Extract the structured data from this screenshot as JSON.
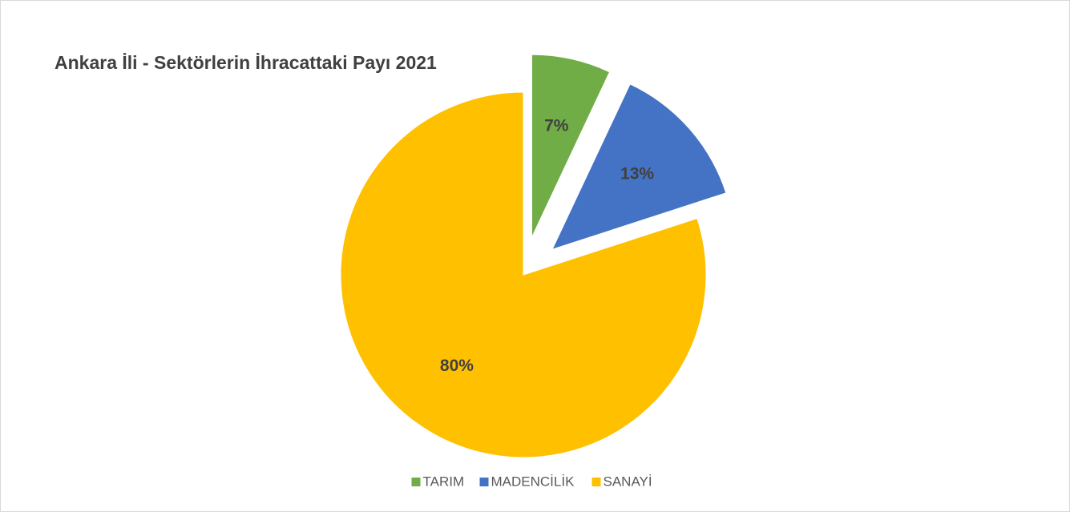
{
  "chart_data": {
    "type": "pie",
    "title": "Ankara İli - Sektörlerin İhracattaki Payı 2021",
    "categories": [
      "TARIM",
      "MADENCİLİK",
      "SANAYİ"
    ],
    "values": [
      7,
      13,
      80
    ],
    "value_labels": [
      "7%",
      "13%",
      "80%"
    ],
    "colors": [
      "#70ad47",
      "#4472c4",
      "#ffc000"
    ],
    "legend": "bottom"
  }
}
